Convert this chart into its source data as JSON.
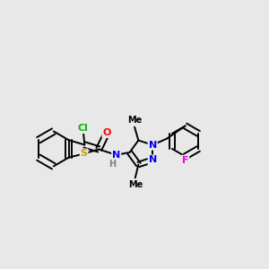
{
  "background_color": "#e8e8e8",
  "bond_color": "#000000",
  "atom_colors": {
    "S": "#c8a000",
    "Cl": "#00bb00",
    "O": "#ff0000",
    "N": "#0000ee",
    "F": "#ee00ee",
    "C": "#000000",
    "H": "#808080"
  },
  "figsize": [
    3.0,
    3.0
  ],
  "dpi": 100
}
